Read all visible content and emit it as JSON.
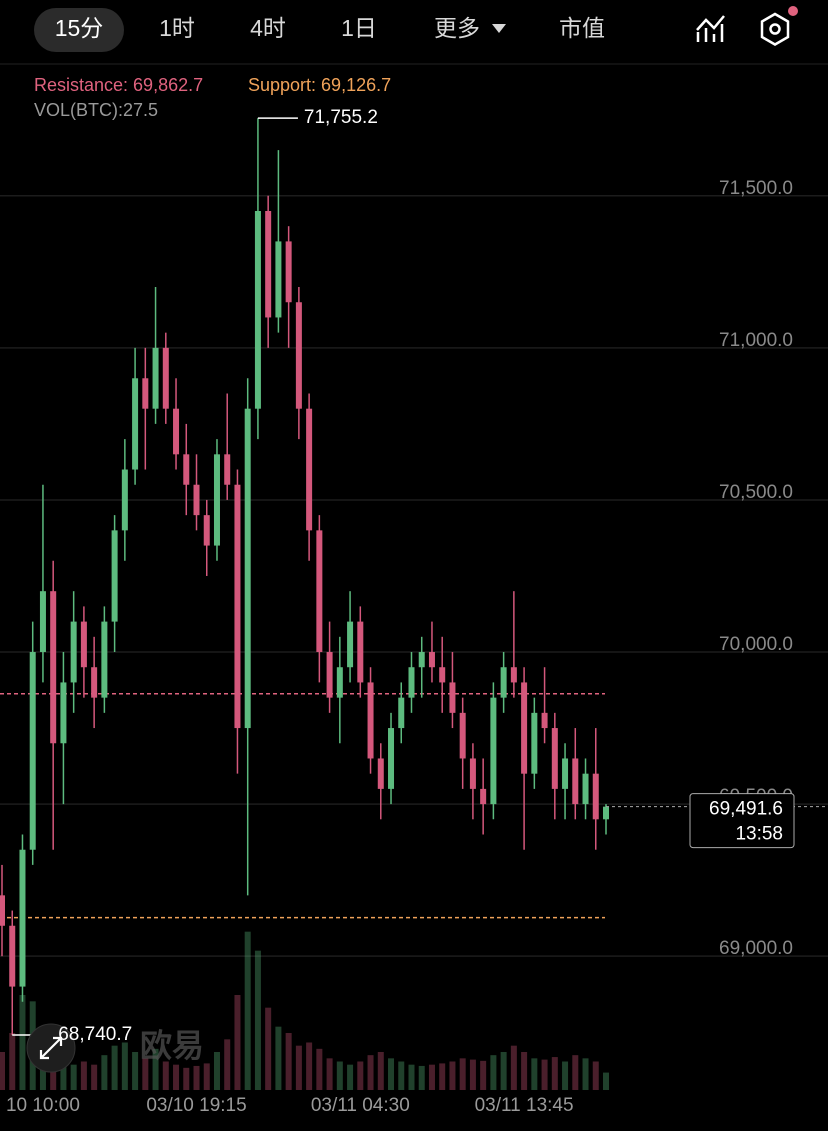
{
  "tabs": [
    "15分",
    "1时",
    "4时",
    "1日",
    "更多",
    "市值"
  ],
  "chart_data": {
    "type": "candlestick",
    "resistance": {
      "text": "Resistance: 69,862.7",
      "value": 69862.7,
      "color": "#e0637f"
    },
    "support": {
      "text": "Support: 69,126.7",
      "value": 69126.7,
      "color": "#f0a35a"
    },
    "volume_text": "VOL(BTC):27.5",
    "high_label": {
      "value": 71755.2,
      "label": "71,755.2"
    },
    "low_label": {
      "value": 68740.7,
      "label": "68,740.7"
    },
    "last_price": {
      "value": 69491.6,
      "label": "69,491.6"
    },
    "countdown": "13:58",
    "watermark": "欧易",
    "up_color": "#5dbb7f",
    "down_color": "#d4587c",
    "ylim": [
      68560,
      71930
    ],
    "yticks": [
      {
        "value": 69000,
        "label": "69,000.0"
      },
      {
        "value": 69500,
        "label": "69,500.0"
      },
      {
        "value": 70000,
        "label": "70,000.0"
      },
      {
        "value": 70500,
        "label": "70,500.0"
      },
      {
        "value": 71000,
        "label": "71,000.0"
      },
      {
        "value": 71500,
        "label": "71,500.0"
      }
    ],
    "grid": true,
    "volume_lim": [
      0,
      300
    ],
    "categories": [
      null,
      null,
      null,
      null,
      "10 10:00",
      null,
      null,
      null,
      null,
      null,
      null,
      null,
      null,
      null,
      null,
      null,
      null,
      null,
      null,
      "03/10 19:15",
      null,
      null,
      null,
      null,
      null,
      null,
      null,
      null,
      null,
      null,
      null,
      null,
      null,
      null,
      null,
      "03/11 04:30",
      null,
      null,
      null,
      null,
      null,
      null,
      null,
      null,
      null,
      null,
      null,
      null,
      null,
      null,
      null,
      "03/11 13:45",
      null,
      null,
      null,
      null,
      null,
      null,
      null,
      null
    ],
    "open": [
      69200,
      69100,
      68900,
      69350,
      70000,
      70200,
      69700,
      69900,
      70100,
      69950,
      69850,
      70100,
      70400,
      70600,
      70900,
      70800,
      71000,
      70800,
      70650,
      70550,
      70450,
      70350,
      70650,
      70550,
      69750,
      70800,
      71450,
      71100,
      71350,
      71150,
      70800,
      70400,
      70000,
      69850,
      69950,
      70100,
      69900,
      69650,
      69550,
      69750,
      69850,
      69950,
      70000,
      69950,
      69900,
      69800,
      69650,
      69550,
      69500,
      69850,
      69950,
      69900,
      69600,
      69800,
      69750,
      69550,
      69650,
      69500,
      69600,
      69450
    ],
    "high": [
      69300,
      69150,
      69400,
      70100,
      70550,
      70300,
      70000,
      70200,
      70150,
      70050,
      70150,
      70450,
      70700,
      71000,
      71000,
      71200,
      71050,
      70900,
      70750,
      70650,
      70500,
      70700,
      70850,
      70600,
      70900,
      71755.2,
      71500,
      71650,
      71400,
      71200,
      70850,
      70450,
      70100,
      70050,
      70200,
      70150,
      69950,
      69700,
      69800,
      69900,
      70000,
      70050,
      70100,
      70050,
      70000,
      69850,
      69700,
      69650,
      69900,
      70000,
      70200,
      69950,
      69850,
      69950,
      69800,
      69700,
      69750,
      69650,
      69750,
      69500
    ],
    "low": [
      69000,
      68740.7,
      68850,
      69300,
      69900,
      69350,
      69500,
      69800,
      69850,
      69750,
      69800,
      70000,
      70300,
      70550,
      70600,
      70750,
      70750,
      70600,
      70450,
      70400,
      70250,
      70300,
      70500,
      69600,
      69200,
      70700,
      71000,
      71050,
      71000,
      70700,
      70300,
      69900,
      69800,
      69700,
      69900,
      69850,
      69600,
      69450,
      69500,
      69700,
      69800,
      69850,
      69900,
      69800,
      69750,
      69550,
      69450,
      69400,
      69450,
      69800,
      69850,
      69350,
      69550,
      69700,
      69450,
      69450,
      69450,
      69450,
      69350,
      69400
    ],
    "close": [
      69100,
      68900,
      69350,
      70000,
      70200,
      69700,
      69900,
      70100,
      69950,
      69850,
      70100,
      70400,
      70600,
      70900,
      70800,
      71000,
      70800,
      70650,
      70550,
      70450,
      70350,
      70650,
      70550,
      69750,
      70800,
      71450,
      71100,
      71350,
      71150,
      70800,
      70400,
      70000,
      69850,
      69950,
      70100,
      69900,
      69650,
      69550,
      69750,
      69850,
      69950,
      70000,
      69950,
      69900,
      69800,
      69650,
      69550,
      69500,
      69850,
      69950,
      69900,
      69600,
      69800,
      69750,
      69550,
      69650,
      69500,
      69600,
      69450,
      69491.6
    ],
    "volumes": [
      60,
      90,
      150,
      140,
      80,
      70,
      50,
      40,
      45,
      40,
      55,
      70,
      75,
      60,
      50,
      65,
      45,
      40,
      35,
      38,
      42,
      60,
      80,
      150,
      250,
      220,
      130,
      100,
      90,
      70,
      75,
      65,
      50,
      45,
      40,
      45,
      55,
      60,
      50,
      45,
      40,
      38,
      40,
      42,
      45,
      50,
      48,
      46,
      55,
      60,
      70,
      60,
      50,
      48,
      52,
      45,
      55,
      50,
      45,
      27.5
    ]
  }
}
